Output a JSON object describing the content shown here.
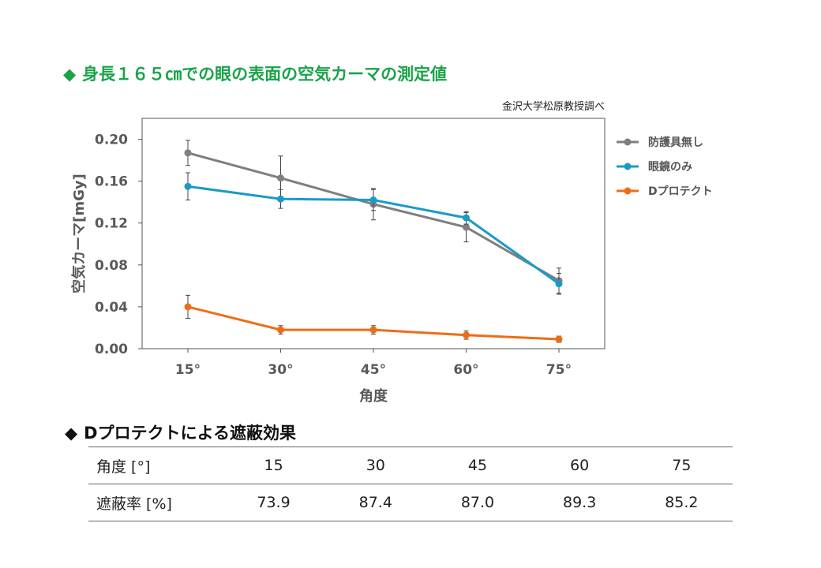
{
  "heading": {
    "marker": "◆",
    "title": "身長１６５㎝での眼の表面の空気カーマの測定値"
  },
  "source_note": "金沢大学松原教授調べ",
  "chart_data": {
    "type": "line",
    "x_categories": [
      "15°",
      "30°",
      "45°",
      "60°",
      "75°"
    ],
    "xlabel": "角度",
    "ylabel": "空気カーマ[mGy]",
    "ylim": [
      0,
      0.22
    ],
    "yticks": [
      "0.00",
      "0.04",
      "0.08",
      "0.12",
      "0.16",
      "0.20"
    ],
    "ytick_values": [
      0,
      0.04,
      0.08,
      0.12,
      0.16,
      0.2
    ],
    "grid": false,
    "legend_position": "right",
    "series": [
      {
        "name": "防護具無し",
        "color": "#7f7f7f",
        "values": [
          0.187,
          0.163,
          0.138,
          0.116,
          0.065
        ],
        "errors": [
          0.012,
          0.021,
          0.015,
          0.014,
          0.012
        ]
      },
      {
        "name": "眼鏡のみ",
        "color": "#1b9ac8",
        "values": [
          0.155,
          0.143,
          0.142,
          0.125,
          0.062
        ],
        "errors": [
          0.013,
          0.009,
          0.01,
          0.006,
          0.01
        ]
      },
      {
        "name": "Dプロテクト",
        "color": "#ee6d14",
        "values": [
          0.04,
          0.018,
          0.018,
          0.013,
          0.009
        ],
        "errors": [
          0.011,
          0.004,
          0.004,
          0.004,
          0.003
        ]
      }
    ]
  },
  "section2": {
    "marker": "◆",
    "title": "Dプロテクトによる遮蔽効果"
  },
  "table": {
    "rows": [
      {
        "label": "角度 [°]",
        "cells": [
          "15",
          "30",
          "45",
          "60",
          "75"
        ]
      },
      {
        "label": "遮蔽率 [%]",
        "cells": [
          "73.9",
          "87.4",
          "87.0",
          "89.3",
          "85.2"
        ]
      }
    ]
  }
}
